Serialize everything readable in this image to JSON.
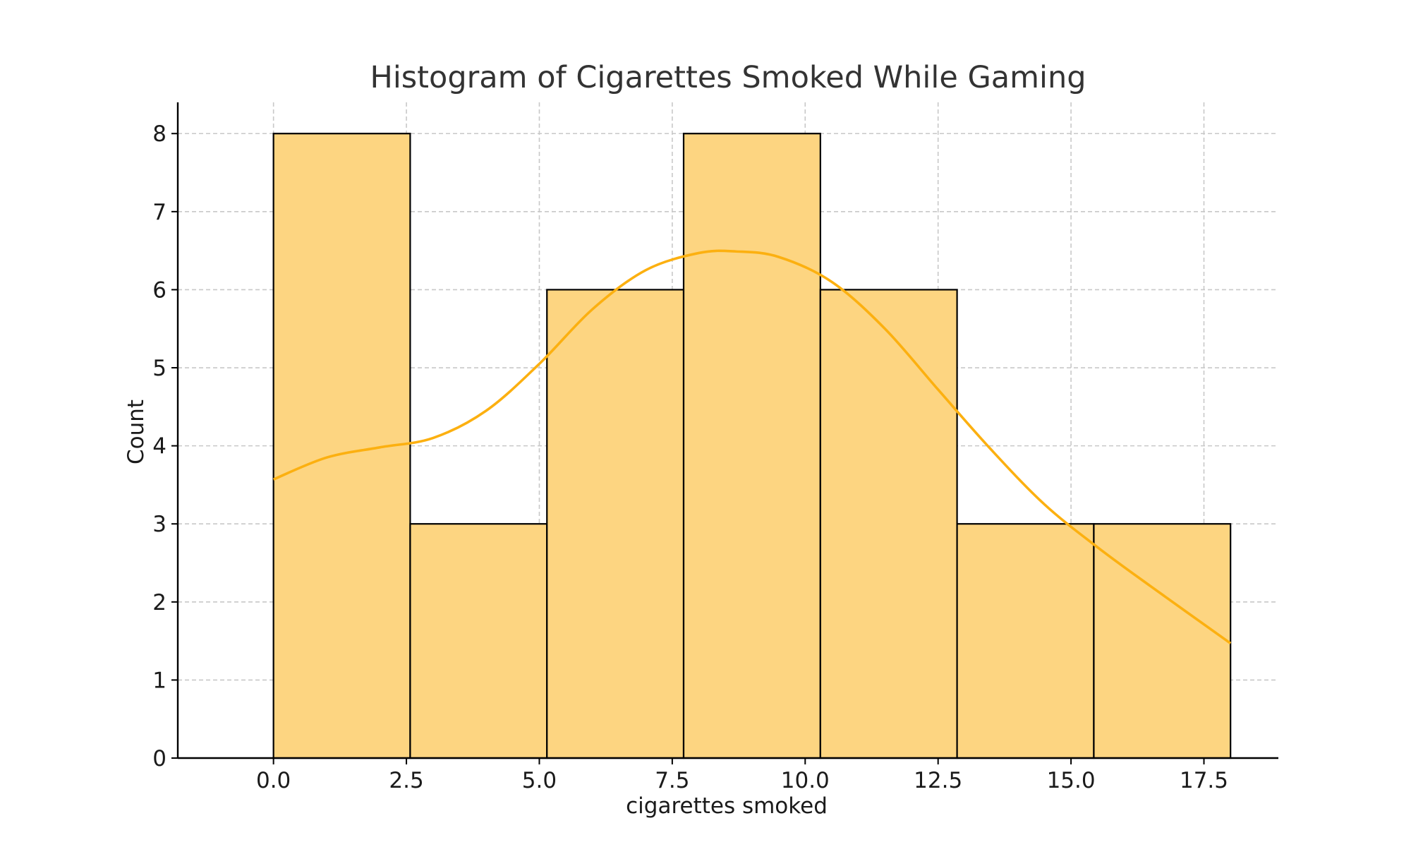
{
  "chart_data": {
    "type": "bar",
    "title": "Histogram of Cigarettes Smoked While Gaming",
    "xlabel": "cigarettes smoked",
    "ylabel": "Count",
    "bin_edges": [
      0.0,
      2.571,
      5.143,
      7.714,
      10.286,
      12.857,
      15.429,
      18.0
    ],
    "values": [
      8,
      3,
      6,
      8,
      6,
      3,
      3
    ],
    "xlim": [
      -1.8,
      18.9
    ],
    "ylim": [
      0,
      8.4
    ],
    "x_ticks": [
      0.0,
      2.5,
      5.0,
      7.5,
      10.0,
      12.5,
      15.0,
      17.5
    ],
    "x_tick_labels": [
      "0.0",
      "2.5",
      "5.0",
      "7.5",
      "10.0",
      "12.5",
      "15.0",
      "17.5"
    ],
    "y_ticks": [
      0,
      1,
      2,
      3,
      4,
      5,
      6,
      7,
      8
    ],
    "y_tick_labels": [
      "0",
      "1",
      "2",
      "3",
      "4",
      "5",
      "6",
      "7",
      "8"
    ],
    "grid": true,
    "kde": {
      "x": [
        0.0,
        1.0,
        2.0,
        3.0,
        4.0,
        5.0,
        6.0,
        7.0,
        8.0,
        8.7,
        9.5,
        10.5,
        11.5,
        12.5,
        13.5,
        14.5,
        15.5,
        16.5,
        18.0
      ],
      "y": [
        3.57,
        3.85,
        3.98,
        4.1,
        4.45,
        5.05,
        5.75,
        6.25,
        6.47,
        6.49,
        6.42,
        6.1,
        5.5,
        4.72,
        3.95,
        3.25,
        2.7,
        2.2,
        1.47
      ]
    },
    "colors": {
      "bar_fill": "#fdd581",
      "kde_line": "#fcb010",
      "edge": "#000000"
    }
  }
}
